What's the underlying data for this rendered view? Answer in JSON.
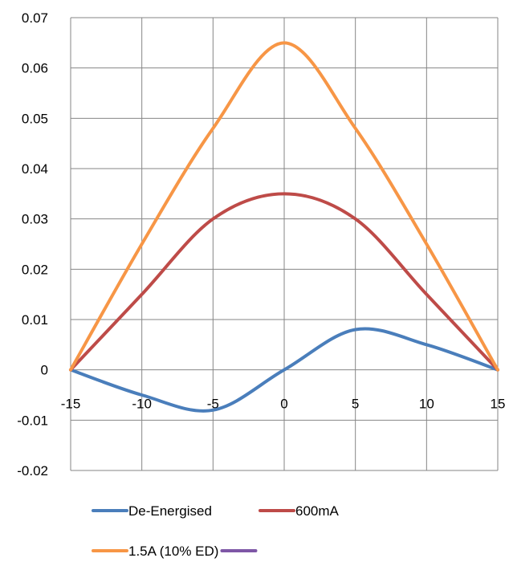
{
  "chart_data": {
    "type": "line",
    "title": "",
    "xlabel": "",
    "ylabel": "",
    "xlim": [
      -15,
      15
    ],
    "ylim": [
      -0.02,
      0.07
    ],
    "grid": true,
    "legend_position": "bottom",
    "x_ticks": [
      "-15",
      "-10",
      "-5",
      "0",
      "5",
      "10",
      "15"
    ],
    "y_ticks": [
      "-0.02",
      "-0.01",
      "0",
      "0.01",
      "0.02",
      "0.03",
      "0.04",
      "0.05",
      "0.06",
      "0.07"
    ],
    "x_tick_values": [
      -15,
      -10,
      -5,
      0,
      5,
      10,
      15
    ],
    "y_tick_values": [
      -0.02,
      -0.01,
      0,
      0.01,
      0.02,
      0.03,
      0.04,
      0.05,
      0.06,
      0.07
    ],
    "series": [
      {
        "name": "De-Energised",
        "color": "#4A7EBB",
        "x": [
          -15,
          -10,
          -5,
          0,
          5,
          10,
          15
        ],
        "y": [
          0,
          -0.005,
          -0.008,
          0,
          0.008,
          0.005,
          0
        ]
      },
      {
        "name": "600mA",
        "color": "#BE4B48",
        "x": [
          -15,
          -10,
          -5,
          0,
          5,
          10,
          15
        ],
        "y": [
          0,
          0.015,
          0.03,
          0.035,
          0.03,
          0.015,
          0
        ]
      },
      {
        "name": "1.5A (10% ED)",
        "color": "#F79646",
        "x": [
          -15,
          -10,
          -5,
          0,
          5,
          10,
          15
        ],
        "y": [
          0,
          0.025,
          0.048,
          0.065,
          0.048,
          0.025,
          0
        ]
      },
      {
        "name": "",
        "color": "#7E57A6",
        "x": [],
        "y": []
      }
    ]
  }
}
